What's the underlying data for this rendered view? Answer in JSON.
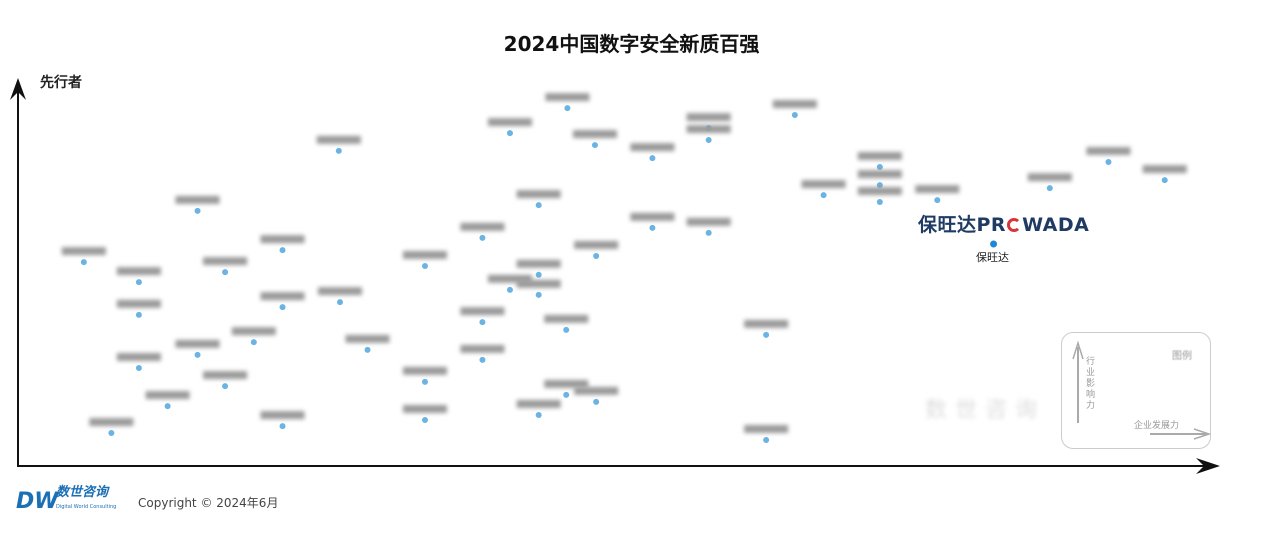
{
  "chart_data": {
    "type": "scatter",
    "title": "2024中国数字安全新质百强",
    "ylabel": "先行者",
    "xlabel": "",
    "grid": false,
    "xlim": [
      0,
      100
    ],
    "ylim": [
      0,
      100
    ],
    "point_color": "#3a9ad9",
    "highlight": {
      "name": "保旺达",
      "logo_text": "保旺达PROWADA",
      "x": 81.5,
      "y": 57.4
    },
    "points": [
      [
        45.9,
        92.7
      ],
      [
        41.1,
        86.2
      ],
      [
        48.2,
        83.1
      ],
      [
        26.8,
        81.6
      ],
      [
        57.7,
        87.5
      ],
      [
        57.7,
        84.4
      ],
      [
        64.9,
        90.9
      ],
      [
        53.0,
        79.7
      ],
      [
        72.0,
        77.4
      ],
      [
        72.0,
        72.7
      ],
      [
        76.8,
        68.8
      ],
      [
        72.0,
        68.3
      ],
      [
        67.3,
        70.1
      ],
      [
        86.2,
        71.9
      ],
      [
        91.1,
        78.7
      ],
      [
        95.8,
        74.0
      ],
      [
        43.5,
        67.5
      ],
      [
        15.0,
        66.0
      ],
      [
        38.8,
        59.0
      ],
      [
        53.0,
        61.6
      ],
      [
        57.7,
        60.3
      ],
      [
        22.1,
        55.8
      ],
      [
        5.5,
        52.7
      ],
      [
        10.1,
        47.5
      ],
      [
        34.0,
        51.7
      ],
      [
        48.3,
        54.3
      ],
      [
        17.3,
        50.1
      ],
      [
        43.5,
        49.4
      ],
      [
        41.1,
        45.5
      ],
      [
        43.5,
        44.2
      ],
      [
        26.9,
        42.3
      ],
      [
        22.1,
        41.0
      ],
      [
        10.1,
        39.0
      ],
      [
        38.8,
        37.1
      ],
      [
        45.8,
        35.1
      ],
      [
        62.5,
        33.8
      ],
      [
        19.7,
        31.9
      ],
      [
        29.2,
        29.9
      ],
      [
        15.0,
        28.6
      ],
      [
        38.8,
        27.3
      ],
      [
        10.1,
        25.2
      ],
      [
        34.0,
        21.6
      ],
      [
        17.3,
        20.5
      ],
      [
        12.5,
        15.3
      ],
      [
        45.8,
        18.2
      ],
      [
        48.3,
        16.4
      ],
      [
        34.0,
        11.7
      ],
      [
        43.5,
        13.0
      ],
      [
        22.1,
        10.1
      ],
      [
        7.8,
        8.3
      ],
      [
        62.5,
        6.5
      ]
    ]
  },
  "legend": {
    "title": "图例",
    "y_axis": "行业影响力",
    "x_axis": "企业发展力"
  },
  "watermark": "数世咨询",
  "footer": {
    "brand_cn": "数世咨询",
    "brand_en": "Digital World Consulting",
    "brand_mark": "DW",
    "copyright": "Copyright © 2024年6月"
  }
}
